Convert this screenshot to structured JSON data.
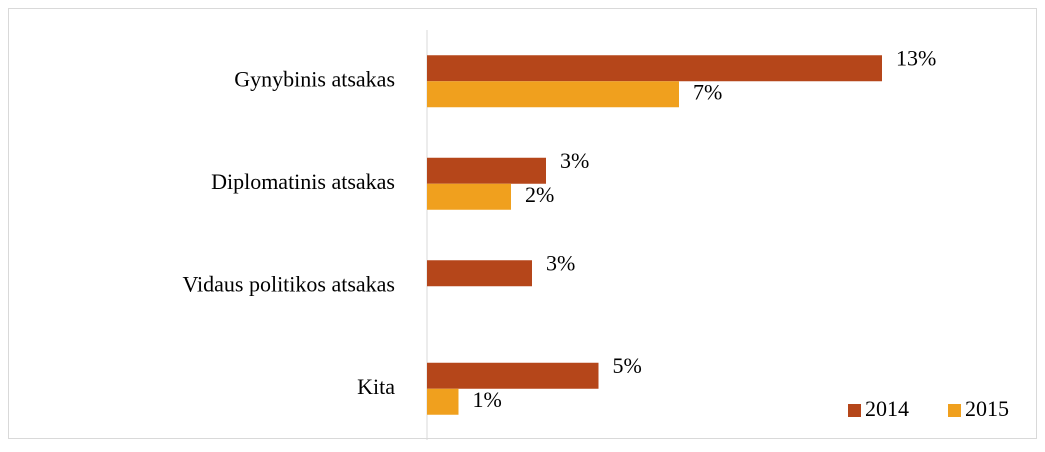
{
  "chart_data": {
    "type": "barh",
    "categories": [
      "Gynybinis atsakas",
      "Diplomatinis atsakas",
      "Vidaus politikos atsakas",
      "Kita"
    ],
    "series": [
      {
        "name": "2014",
        "color": "#b5461a",
        "values": [
          13,
          3.4,
          3.0,
          4.9
        ],
        "value_labels": [
          "13%",
          "3%",
          "3%",
          "5%"
        ]
      },
      {
        "name": "2015",
        "color": "#f0a01e",
        "values": [
          7.2,
          2.4,
          null,
          0.9
        ],
        "value_labels": [
          "7%",
          "2%",
          null,
          "1%"
        ]
      }
    ],
    "xlim": [
      0,
      14
    ],
    "legend": "lower right"
  }
}
